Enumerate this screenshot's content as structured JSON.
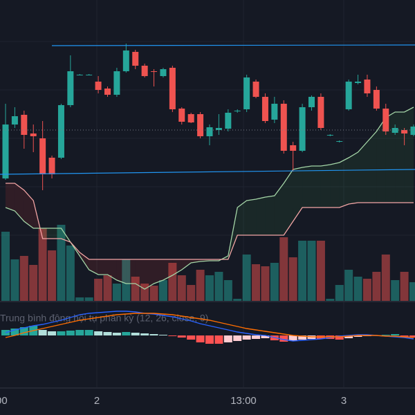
{
  "chart_data": {
    "type": "candlestick",
    "open": [
      342,
      420,
      434,
      407,
      400,
      372,
      372,
      448,
      492,
      492,
      482,
      472,
      463,
      497,
      525,
      505,
      497,
      490,
      502,
      443,
      435,
      435,
      403,
      412,
      414,
      439,
      442,
      482,
      460,
      427,
      450,
      390,
      382,
      445,
      460,
      404,
      395,
      442,
      480,
      485,
      470,
      443,
      408,
      412,
      405
    ],
    "high": [
      450,
      445,
      440,
      420,
      425,
      375,
      450,
      520,
      493,
      493,
      490,
      475,
      502,
      537,
      528,
      508,
      500,
      502,
      505,
      445,
      437,
      438,
      420,
      435,
      442,
      442,
      492,
      485,
      465,
      460,
      455,
      395,
      450,
      462,
      465,
      406,
      397,
      485,
      492,
      492,
      475,
      450,
      420,
      415,
      420
    ],
    "low": [
      340,
      415,
      385,
      380,
      325,
      342,
      370,
      445,
      491,
      491,
      465,
      460,
      460,
      495,
      500,
      488,
      475,
      488,
      438,
      420,
      422,
      400,
      390,
      405,
      410,
      437,
      438,
      458,
      422,
      422,
      378,
      352,
      380,
      440,
      412,
      403,
      394,
      440,
      478,
      460,
      440,
      405,
      405,
      390,
      403
    ],
    "close": [
      420,
      432,
      405,
      403,
      348,
      348,
      448,
      497,
      492,
      492,
      470,
      463,
      497,
      527,
      505,
      490,
      496,
      500,
      442,
      424,
      423,
      403,
      416,
      415,
      437,
      440,
      488,
      460,
      425,
      450,
      382,
      382,
      445,
      460,
      415,
      405,
      396,
      482,
      482,
      465,
      443,
      410,
      415,
      407,
      417
    ],
    "ylim": [
      0,
      600
    ],
    "up_color": "#26a69a",
    "down_color": "#ef5350",
    "volume": [
      100,
      60,
      65,
      52,
      105,
      73,
      110,
      80,
      5,
      5,
      32,
      37,
      25,
      60,
      35,
      25,
      22,
      30,
      55,
      37,
      23,
      45,
      37,
      42,
      30,
      3,
      67,
      53,
      50,
      55,
      92,
      63,
      87,
      87,
      87,
      3,
      23,
      45,
      35,
      32,
      42,
      67,
      30,
      42,
      27
    ],
    "volume_lim": [
      0,
      435
    ],
    "cloud": {
      "span_a": [
        300,
        295,
        280,
        270,
        270,
        270,
        270,
        250,
        230,
        210,
        203,
        203,
        195,
        190,
        190,
        182,
        190,
        195,
        202,
        210,
        220,
        222,
        223,
        223,
        230,
        300,
        310,
        312,
        315,
        317,
        335,
        355,
        358,
        360,
        360,
        362,
        365,
        372,
        380,
        395,
        410,
        430,
        438,
        438,
        445
      ],
      "span_b": [
        335,
        335,
        325,
        310,
        255,
        255,
        255,
        250,
        235,
        225,
        225,
        225,
        225,
        225,
        225,
        225,
        225,
        225,
        225,
        225,
        225,
        225,
        225,
        225,
        225,
        260,
        260,
        260,
        260,
        260,
        260,
        280,
        300,
        300,
        300,
        300,
        300,
        305,
        307,
        307,
        307,
        307,
        307,
        307,
        307
      ],
      "a_color": "#a5d6a7",
      "b_color": "#f4a6a6"
    },
    "macd": {
      "label": "Trung bình động hội tụ phân kỳ (12, 26, close, 9)",
      "macd": [
        4,
        8,
        11,
        14,
        16,
        19,
        22,
        26,
        30,
        32,
        33,
        34,
        35,
        35,
        34,
        32,
        31,
        29,
        27,
        24,
        21,
        17,
        14,
        11,
        8,
        5,
        3,
        1,
        0,
        -3,
        -6,
        -8,
        -7,
        -6,
        -5,
        -3,
        -1,
        0,
        1,
        1,
        0,
        -1,
        -2,
        -3,
        -5
      ],
      "signal": [
        -3,
        0,
        4,
        7,
        10,
        13,
        16,
        19,
        22,
        24,
        26,
        28,
        30,
        31,
        32,
        32,
        32,
        31,
        30,
        28,
        26,
        24,
        22,
        19,
        16,
        13,
        10,
        8,
        6,
        4,
        2,
        0,
        -1,
        -2,
        -2,
        -2,
        -2,
        -1,
        0,
        0,
        0,
        -1,
        -1,
        -2,
        -3
      ],
      "histogram": [
        8,
        10,
        12,
        14,
        8,
        6,
        6,
        7,
        8,
        8,
        6,
        5,
        4,
        5,
        4,
        3,
        2,
        1,
        -1,
        -3,
        -6,
        -10,
        -12,
        -12,
        -10,
        -8,
        -6,
        -5,
        -4,
        -7,
        -9,
        -8,
        -6,
        -5,
        -5,
        -5,
        -6,
        -4,
        -2,
        -1,
        0,
        1,
        2,
        -2,
        -3
      ],
      "lim": [
        -75,
        48
      ],
      "macd_color": "#2962ff",
      "signal_color": "#ff6d00"
    },
    "x_labels": [
      "00",
      "2",
      "13:00",
      "3"
    ]
  }
}
